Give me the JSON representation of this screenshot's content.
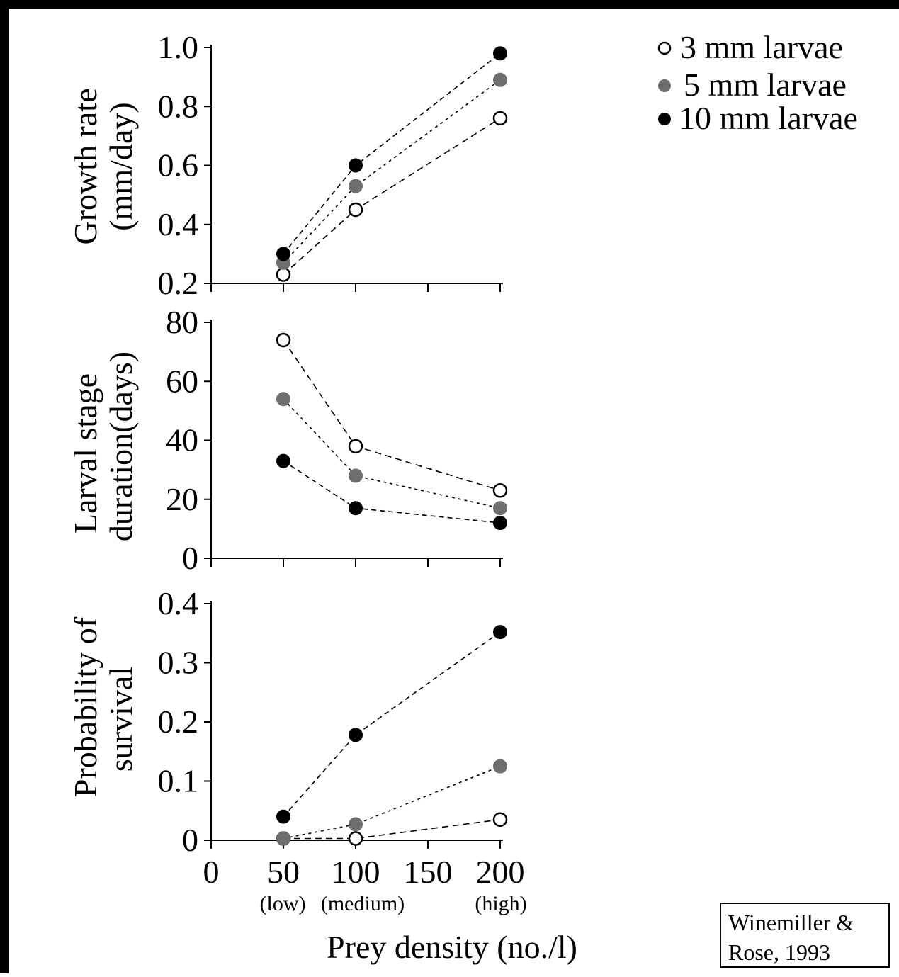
{
  "colors": {
    "series_3mm_fill": "#ffffff",
    "series_5mm_fill": "#6e6e6e",
    "series_10mm_fill": "#000000",
    "line": "#000000",
    "background": "#ffffff"
  },
  "legend": {
    "items": [
      "3 mm larvae",
      "5 mm larvae",
      "10 mm larvae"
    ],
    "position": "top-right"
  },
  "xaxis": {
    "label": "Prey density (no./l)",
    "ticks": [
      "0",
      "50",
      "100",
      "150",
      "200"
    ],
    "sublabels": [
      "(low)",
      "(medium)",
      "(high)"
    ]
  },
  "credit": {
    "line1": "Winemiller &",
    "line2": "Rose, 1993"
  },
  "chart_data": [
    {
      "type": "line",
      "ylabel_line1": "Growth rate",
      "ylabel_line2": "(mm/day)",
      "ylim": [
        0.2,
        1.0
      ],
      "yticks": [
        "0.2",
        "0.4",
        "0.6",
        "0.8",
        "1.0"
      ],
      "x": [
        50,
        100,
        200
      ],
      "xlim": [
        0,
        200
      ],
      "series": [
        {
          "name": "3 mm larvae",
          "values": [
            0.23,
            0.45,
            0.76
          ]
        },
        {
          "name": "5 mm larvae",
          "values": [
            0.27,
            0.53,
            0.89
          ]
        },
        {
          "name": "10 mm larvae",
          "values": [
            0.3,
            0.6,
            0.98
          ]
        }
      ]
    },
    {
      "type": "line",
      "ylabel_line1": "Larval stage",
      "ylabel_line2": "duration(days)",
      "ylim": [
        0,
        80
      ],
      "yticks": [
        "0",
        "20",
        "40",
        "60",
        "80"
      ],
      "x": [
        50,
        100,
        200
      ],
      "xlim": [
        0,
        200
      ],
      "series": [
        {
          "name": "3 mm larvae",
          "values": [
            74,
            38,
            23
          ]
        },
        {
          "name": "5 mm larvae",
          "values": [
            54,
            28,
            17
          ]
        },
        {
          "name": "10 mm larvae",
          "values": [
            33,
            17,
            12
          ]
        }
      ]
    },
    {
      "type": "line",
      "ylabel_line1": "Probability of",
      "ylabel_line2": "survival",
      "ylim": [
        0,
        0.4
      ],
      "yticks": [
        "0",
        "0.1",
        "0.2",
        "0.3",
        "0.4"
      ],
      "x": [
        50,
        100,
        200
      ],
      "xlim": [
        0,
        200
      ],
      "series": [
        {
          "name": "3 mm larvae",
          "values": [
            0.003,
            0.003,
            0.035
          ]
        },
        {
          "name": "5 mm larvae",
          "values": [
            0.003,
            0.027,
            0.125
          ]
        },
        {
          "name": "10 mm larvae",
          "values": [
            0.04,
            0.178,
            0.352
          ]
        }
      ]
    }
  ]
}
